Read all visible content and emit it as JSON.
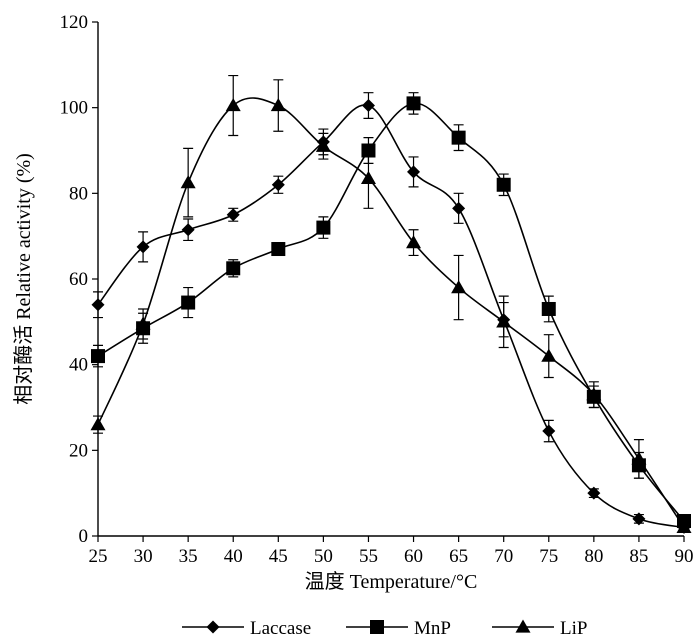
{
  "chart_data": {
    "type": "line",
    "xlabel": "温度 Temperature/°C",
    "ylabel": "相对酶活 Relative activity (%)",
    "xlim": [
      25,
      90
    ],
    "ylim": [
      0,
      120
    ],
    "x": [
      25,
      30,
      35,
      40,
      45,
      50,
      55,
      60,
      65,
      70,
      75,
      80,
      85,
      90
    ],
    "xticks": [
      "25",
      "30",
      "35",
      "40",
      "45",
      "50",
      "55",
      "60",
      "65",
      "70",
      "75",
      "80",
      "85",
      "90"
    ],
    "yticks": [
      "0",
      "20",
      "40",
      "60",
      "80",
      "100",
      "120"
    ],
    "grid": false,
    "legend_position": "bottom",
    "series": [
      {
        "name": "Laccase",
        "marker": "diamond",
        "values": [
          54,
          67.5,
          71.5,
          75,
          82,
          92,
          100.5,
          85,
          76.5,
          50.5,
          24.5,
          10,
          4,
          2
        ],
        "errors": [
          3,
          3.5,
          2.5,
          1.5,
          2,
          3,
          3,
          3.5,
          3.5,
          4,
          2.5,
          1,
          1,
          1
        ]
      },
      {
        "name": "MnP",
        "marker": "square",
        "values": [
          42,
          48.5,
          54.5,
          62.5,
          67,
          72,
          90,
          101,
          93,
          82,
          53,
          32.5,
          16.5,
          3.5
        ],
        "errors": [
          2.5,
          3.5,
          3.5,
          2,
          1.5,
          2.5,
          3,
          2.5,
          3,
          2.5,
          3,
          2.5,
          3,
          1
        ]
      },
      {
        "name": "LiP",
        "marker": "triangle",
        "values": [
          26,
          49.5,
          82.5,
          100.5,
          100.5,
          91,
          83.5,
          68.5,
          58,
          50,
          42,
          33,
          18,
          2
        ],
        "errors": [
          2,
          3.5,
          8,
          7,
          6,
          3,
          7,
          3,
          7.5,
          6,
          5,
          3,
          4.5,
          1
        ]
      }
    ]
  }
}
